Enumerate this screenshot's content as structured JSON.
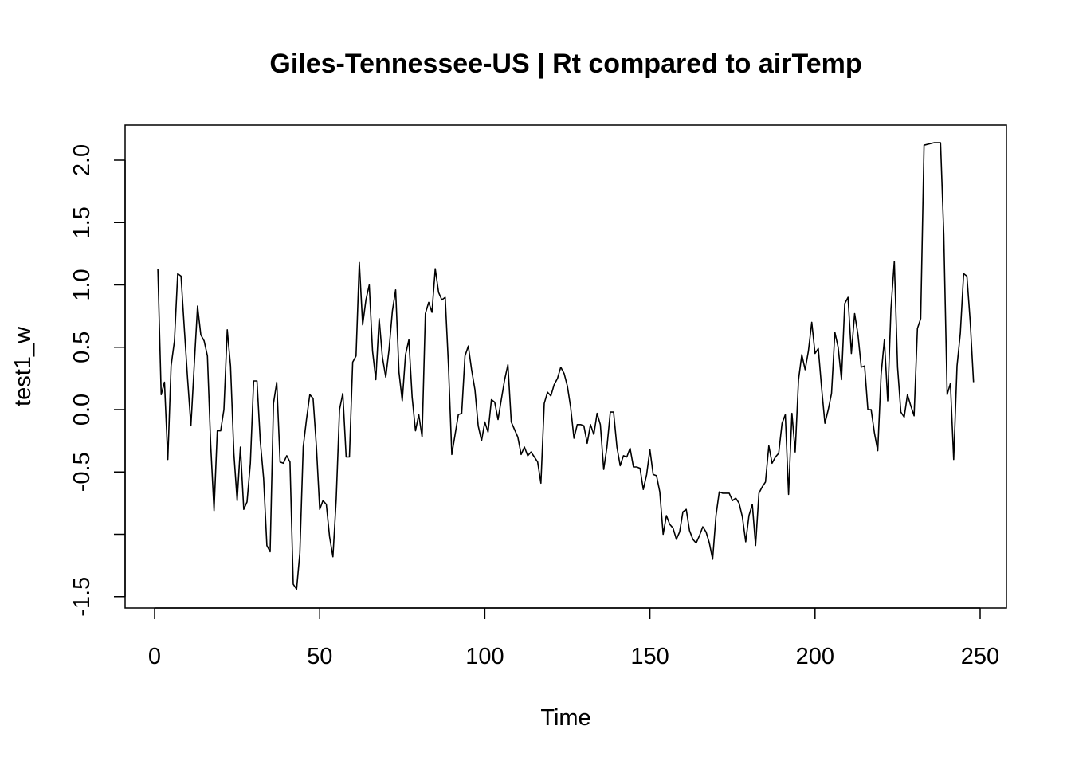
{
  "chart_data": {
    "type": "line",
    "title": "Giles-Tennessee-US | Rt compared to airTemp",
    "xlabel": "Time",
    "ylabel": "test1_w",
    "xlim": [
      0,
      250
    ],
    "ylim": [
      -1.5,
      2.1
    ],
    "x_ticks": [
      0,
      50,
      100,
      150,
      200,
      250
    ],
    "x_tick_labels": [
      "0",
      "50",
      "100",
      "150",
      "200",
      "250"
    ],
    "y_ticks": [
      -1.5,
      -1.0,
      -0.5,
      0.0,
      0.5,
      1.0,
      1.5,
      2.0
    ],
    "y_tick_labels": [
      "-1.5",
      "",
      "-0.5",
      "0.0",
      "0.5",
      "1.0",
      "1.5",
      "2.0"
    ],
    "grid": false,
    "series": [
      {
        "color": "#000000",
        "points": [
          [
            1,
            1.13
          ],
          [
            2,
            0.12
          ],
          [
            3,
            0.22
          ],
          [
            4,
            -0.4
          ],
          [
            5,
            0.35
          ],
          [
            6,
            0.55
          ],
          [
            7,
            1.09
          ],
          [
            8,
            1.07
          ],
          [
            9,
            0.65
          ],
          [
            10,
            0.25
          ],
          [
            11,
            -0.13
          ],
          [
            12,
            0.35
          ],
          [
            13,
            0.83
          ],
          [
            14,
            0.6
          ],
          [
            15,
            0.55
          ],
          [
            16,
            0.43
          ],
          [
            17,
            -0.28
          ],
          [
            18,
            -0.81
          ],
          [
            19,
            -0.17
          ],
          [
            20,
            -0.17
          ],
          [
            21,
            0.0
          ],
          [
            22,
            0.64
          ],
          [
            23,
            0.35
          ],
          [
            24,
            -0.35
          ],
          [
            25,
            -0.73
          ],
          [
            26,
            -0.3
          ],
          [
            27,
            -0.8
          ],
          [
            28,
            -0.74
          ],
          [
            29,
            -0.43
          ],
          [
            30,
            0.23
          ],
          [
            31,
            0.23
          ],
          [
            32,
            -0.25
          ],
          [
            33,
            -0.55
          ],
          [
            34,
            -1.09
          ],
          [
            35,
            -1.14
          ],
          [
            36,
            0.05
          ],
          [
            37,
            0.22
          ],
          [
            38,
            -0.42
          ],
          [
            39,
            -0.43
          ],
          [
            40,
            -0.37
          ],
          [
            41,
            -0.42
          ],
          [
            42,
            -1.4
          ],
          [
            43,
            -1.44
          ],
          [
            44,
            -1.15
          ],
          [
            45,
            -0.3
          ],
          [
            46,
            -0.08
          ],
          [
            47,
            0.12
          ],
          [
            48,
            0.09
          ],
          [
            49,
            -0.3
          ],
          [
            50,
            -0.8
          ],
          [
            51,
            -0.73
          ],
          [
            52,
            -0.76
          ],
          [
            53,
            -1.02
          ],
          [
            54,
            -1.18
          ],
          [
            55,
            -0.72
          ],
          [
            56,
            0.0
          ],
          [
            57,
            0.13
          ],
          [
            58,
            -0.38
          ],
          [
            59,
            -0.38
          ],
          [
            60,
            0.38
          ],
          [
            61,
            0.43
          ],
          [
            62,
            1.18
          ],
          [
            63,
            0.68
          ],
          [
            64,
            0.88
          ],
          [
            65,
            1.0
          ],
          [
            66,
            0.47
          ],
          [
            67,
            0.24
          ],
          [
            68,
            0.73
          ],
          [
            69,
            0.42
          ],
          [
            70,
            0.26
          ],
          [
            71,
            0.48
          ],
          [
            72,
            0.79
          ],
          [
            73,
            0.96
          ],
          [
            74,
            0.3
          ],
          [
            75,
            0.07
          ],
          [
            76,
            0.44
          ],
          [
            77,
            0.56
          ],
          [
            78,
            0.1
          ],
          [
            79,
            -0.17
          ],
          [
            80,
            -0.04
          ],
          [
            81,
            -0.22
          ],
          [
            82,
            0.77
          ],
          [
            83,
            0.86
          ],
          [
            84,
            0.78
          ],
          [
            85,
            1.13
          ],
          [
            86,
            0.94
          ],
          [
            87,
            0.88
          ],
          [
            88,
            0.9
          ],
          [
            89,
            0.35
          ],
          [
            90,
            -0.36
          ],
          [
            91,
            -0.2
          ],
          [
            92,
            -0.04
          ],
          [
            93,
            -0.03
          ],
          [
            94,
            0.43
          ],
          [
            95,
            0.51
          ],
          [
            96,
            0.32
          ],
          [
            97,
            0.16
          ],
          [
            98,
            -0.13
          ],
          [
            99,
            -0.25
          ],
          [
            100,
            -0.1
          ],
          [
            101,
            -0.18
          ],
          [
            102,
            0.08
          ],
          [
            103,
            0.06
          ],
          [
            104,
            -0.08
          ],
          [
            105,
            0.08
          ],
          [
            106,
            0.24
          ],
          [
            107,
            0.36
          ],
          [
            108,
            -0.1
          ],
          [
            109,
            -0.16
          ],
          [
            110,
            -0.22
          ],
          [
            111,
            -0.36
          ],
          [
            112,
            -0.3
          ],
          [
            113,
            -0.37
          ],
          [
            114,
            -0.34
          ],
          [
            115,
            -0.38
          ],
          [
            116,
            -0.42
          ],
          [
            117,
            -0.59
          ],
          [
            118,
            0.05
          ],
          [
            119,
            0.14
          ],
          [
            120,
            0.11
          ],
          [
            121,
            0.2
          ],
          [
            122,
            0.25
          ],
          [
            123,
            0.34
          ],
          [
            124,
            0.29
          ],
          [
            125,
            0.19
          ],
          [
            126,
            0.02
          ],
          [
            127,
            -0.23
          ],
          [
            128,
            -0.12
          ],
          [
            129,
            -0.12
          ],
          [
            130,
            -0.13
          ],
          [
            131,
            -0.27
          ],
          [
            132,
            -0.12
          ],
          [
            133,
            -0.2
          ],
          [
            134,
            -0.03
          ],
          [
            135,
            -0.12
          ],
          [
            136,
            -0.48
          ],
          [
            137,
            -0.3
          ],
          [
            138,
            -0.02
          ],
          [
            139,
            -0.02
          ],
          [
            140,
            -0.3
          ],
          [
            141,
            -0.45
          ],
          [
            142,
            -0.37
          ],
          [
            143,
            -0.38
          ],
          [
            144,
            -0.31
          ],
          [
            145,
            -0.46
          ],
          [
            146,
            -0.46
          ],
          [
            147,
            -0.47
          ],
          [
            148,
            -0.64
          ],
          [
            149,
            -0.52
          ],
          [
            150,
            -0.32
          ],
          [
            151,
            -0.52
          ],
          [
            152,
            -0.53
          ],
          [
            153,
            -0.66
          ],
          [
            154,
            -1.0
          ],
          [
            155,
            -0.85
          ],
          [
            156,
            -0.92
          ],
          [
            157,
            -0.95
          ],
          [
            158,
            -1.04
          ],
          [
            159,
            -0.98
          ],
          [
            160,
            -0.82
          ],
          [
            161,
            -0.8
          ],
          [
            162,
            -0.97
          ],
          [
            163,
            -1.04
          ],
          [
            164,
            -1.07
          ],
          [
            165,
            -1.01
          ],
          [
            166,
            -0.94
          ],
          [
            167,
            -0.98
          ],
          [
            168,
            -1.07
          ],
          [
            169,
            -1.2
          ],
          [
            170,
            -0.85
          ],
          [
            171,
            -0.66
          ],
          [
            172,
            -0.67
          ],
          [
            173,
            -0.67
          ],
          [
            174,
            -0.67
          ],
          [
            175,
            -0.73
          ],
          [
            176,
            -0.71
          ],
          [
            177,
            -0.75
          ],
          [
            178,
            -0.86
          ],
          [
            179,
            -1.06
          ],
          [
            180,
            -0.85
          ],
          [
            181,
            -0.76
          ],
          [
            182,
            -1.09
          ],
          [
            183,
            -0.67
          ],
          [
            184,
            -0.62
          ],
          [
            185,
            -0.58
          ],
          [
            186,
            -0.29
          ],
          [
            187,
            -0.43
          ],
          [
            188,
            -0.38
          ],
          [
            189,
            -0.35
          ],
          [
            190,
            -0.11
          ],
          [
            191,
            -0.04
          ],
          [
            192,
            -0.68
          ],
          [
            193,
            -0.03
          ],
          [
            194,
            -0.34
          ],
          [
            195,
            0.24
          ],
          [
            196,
            0.44
          ],
          [
            197,
            0.32
          ],
          [
            198,
            0.47
          ],
          [
            199,
            0.7
          ],
          [
            200,
            0.45
          ],
          [
            201,
            0.49
          ],
          [
            202,
            0.17
          ],
          [
            203,
            -0.11
          ],
          [
            204,
            0.0
          ],
          [
            205,
            0.13
          ],
          [
            206,
            0.62
          ],
          [
            207,
            0.5
          ],
          [
            208,
            0.24
          ],
          [
            209,
            0.85
          ],
          [
            210,
            0.9
          ],
          [
            211,
            0.45
          ],
          [
            212,
            0.77
          ],
          [
            213,
            0.6
          ],
          [
            214,
            0.34
          ],
          [
            215,
            0.35
          ],
          [
            216,
            0.0
          ],
          [
            217,
            0.0
          ],
          [
            218,
            -0.19
          ],
          [
            219,
            -0.33
          ],
          [
            220,
            0.28
          ],
          [
            221,
            0.56
          ],
          [
            222,
            0.07
          ],
          [
            223,
            0.81
          ],
          [
            224,
            1.19
          ],
          [
            225,
            0.34
          ],
          [
            226,
            -0.02
          ],
          [
            227,
            -0.06
          ],
          [
            228,
            0.12
          ],
          [
            229,
            0.03
          ],
          [
            230,
            -0.05
          ],
          [
            231,
            0.65
          ],
          [
            232,
            0.73
          ],
          [
            233,
            2.12
          ],
          [
            236,
            2.14
          ],
          [
            238,
            2.14
          ],
          [
            239,
            1.4
          ],
          [
            240,
            0.12
          ],
          [
            241,
            0.21
          ],
          [
            242,
            -0.4
          ],
          [
            243,
            0.35
          ],
          [
            244,
            0.61
          ],
          [
            245,
            1.09
          ],
          [
            246,
            1.07
          ],
          [
            247,
            0.7
          ],
          [
            248,
            0.22
          ]
        ]
      }
    ]
  }
}
